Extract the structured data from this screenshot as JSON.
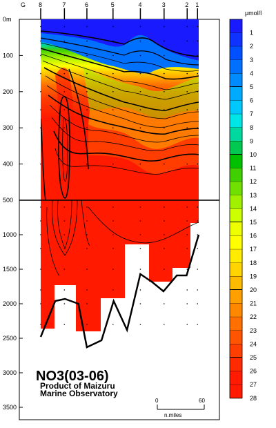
{
  "chart_data": {
    "type": "heatmap",
    "title": "NO3(03-06)",
    "subtitle_line1": "Product of Maizuru",
    "subtitle_line2": "Marine Observatory",
    "x_label_prefix": "G",
    "stations": [
      "8",
      "7",
      "6",
      "5",
      "4",
      "3",
      "2",
      "1"
    ],
    "station_distance_nm": [
      0,
      19.5,
      38,
      59.5,
      82,
      101.5,
      120.5,
      129
    ],
    "depth_upper_ticks": [
      "0m",
      "100",
      "200",
      "300",
      "400",
      "500"
    ],
    "depth_lower_ticks": [
      "1000",
      "1500",
      "2000",
      "2500",
      "3000",
      "3500"
    ],
    "upper_range_m": [
      0,
      500
    ],
    "lower_range_m": [
      500,
      3600
    ],
    "unit": "μmol/l",
    "legend_values": [
      "1",
      "2",
      "3",
      "4",
      "5",
      "6",
      "7",
      "8",
      "9",
      "10",
      "11",
      "12",
      "13",
      "14",
      "15",
      "16",
      "17",
      "18",
      "19",
      "20",
      "21",
      "22",
      "23",
      "24",
      "25",
      "26",
      "27",
      "28"
    ],
    "legend_colors": [
      "#1a1aff",
      "#0f33ff",
      "#0050ff",
      "#0070ff",
      "#008cff",
      "#00aaff",
      "#00c8ff",
      "#00e6e6",
      "#00d8a0",
      "#00c850",
      "#00c000",
      "#40d000",
      "#70e000",
      "#a0f000",
      "#ccff00",
      "#eeff00",
      "#ffff00",
      "#ffec00",
      "#ffd400",
      "#ffbb00",
      "#ffa000",
      "#ff8800",
      "#ff7000",
      "#ff5500",
      "#ff3f00",
      "#ff2a00",
      "#ff1a00",
      "#ff1a00"
    ],
    "highlight_levels": [
      "5",
      "10",
      "15",
      "20",
      "25"
    ],
    "scale_bar": {
      "min": "0",
      "max": "60",
      "unit": "n.miles"
    },
    "bottom_profile": [
      {
        "distance_nm": 0,
        "depth_m": 2480
      },
      {
        "distance_nm": 12,
        "depth_m": 1960
      },
      {
        "distance_nm": 20,
        "depth_m": 1930
      },
      {
        "distance_nm": 31,
        "depth_m": 2000
      },
      {
        "distance_nm": 38,
        "depth_m": 2630
      },
      {
        "distance_nm": 50,
        "depth_m": 2530
      },
      {
        "distance_nm": 60,
        "depth_m": 1960
      },
      {
        "distance_nm": 71,
        "depth_m": 2380
      },
      {
        "distance_nm": 82,
        "depth_m": 1570
      },
      {
        "distance_nm": 92,
        "depth_m": 1690
      },
      {
        "distance_nm": 101,
        "depth_m": 1820
      },
      {
        "distance_nm": 112,
        "depth_m": 1590
      },
      {
        "distance_nm": 120,
        "depth_m": 1590
      },
      {
        "distance_nm": 130,
        "depth_m": 1000
      }
    ]
  }
}
